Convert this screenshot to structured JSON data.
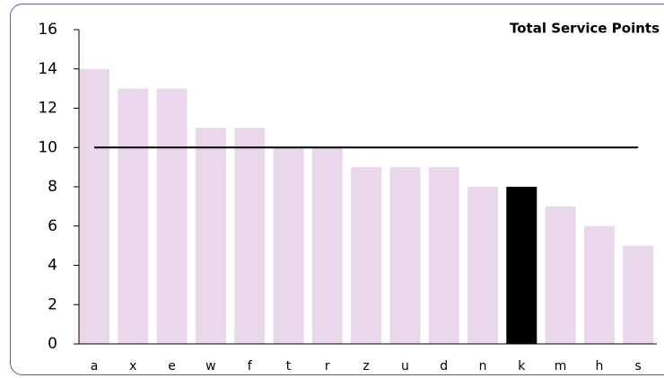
{
  "chart_data": {
    "type": "bar",
    "title": "Total Service Points",
    "categories": [
      "a",
      "x",
      "e",
      "w",
      "f",
      "t",
      "r",
      "z",
      "u",
      "d",
      "n",
      "k",
      "m",
      "h",
      "s"
    ],
    "values": [
      14,
      13,
      13,
      11,
      11,
      10,
      10,
      9,
      9,
      9,
      8,
      8,
      7,
      6,
      5
    ],
    "colors": [
      "#ebd7eb",
      "#ebd7eb",
      "#ebd7eb",
      "#ebd7eb",
      "#ebd7eb",
      "#ebd7eb",
      "#ebd7eb",
      "#ebd7eb",
      "#ebd7eb",
      "#ebd7eb",
      "#ebd7eb",
      "#000000",
      "#ebd7eb",
      "#ebd7eb",
      "#ebd7eb"
    ],
    "reference_line": 10,
    "ylim": [
      0,
      16
    ],
    "yticks": [
      0,
      2,
      4,
      6,
      8,
      10,
      12,
      14,
      16
    ],
    "grid": false
  }
}
